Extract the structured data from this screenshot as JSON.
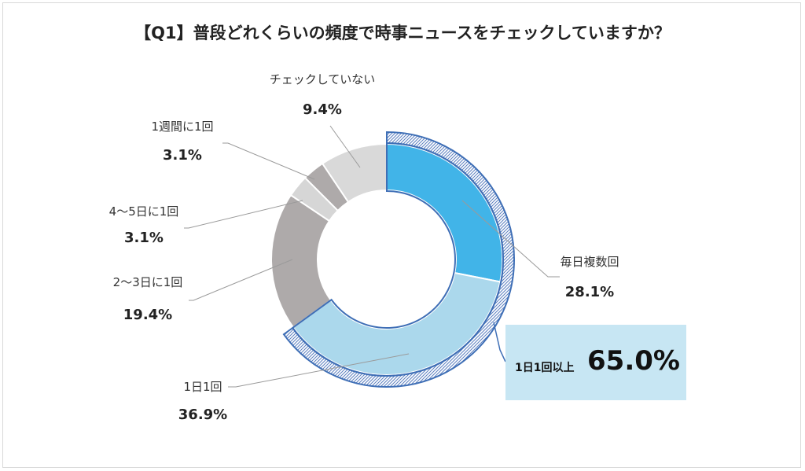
{
  "chart_data": {
    "type": "pie",
    "title": "【Q1】普段どれくらいの頻度で時事ニュースをチェックしていますか？",
    "slices": [
      {
        "label": "毎日複数回",
        "value": 28.1,
        "value_text": "28.1%",
        "color": "#41b4e8"
      },
      {
        "label": "1日1回",
        "value": 36.9,
        "value_text": "36.9%",
        "color": "#abd8ec"
      },
      {
        "label": "2～3日に1回",
        "value": 19.4,
        "value_text": "19.4%",
        "color": "#aeaaaa"
      },
      {
        "label": "4～5日に1回",
        "value": 3.1,
        "value_text": "3.1%",
        "color": "#d6d6d6"
      },
      {
        "label": "1週間に1回",
        "value": 3.1,
        "value_text": "3.1%",
        "color": "#aeaaaa"
      },
      {
        "label": "チェックしていない",
        "value": 9.4,
        "value_text": "9.4%",
        "color": "#d9d9d9"
      }
    ],
    "highlight": {
      "label": "1日1回以上",
      "value": 65.0,
      "value_text": "65.0%",
      "border_color": "#3f6fb6"
    }
  }
}
